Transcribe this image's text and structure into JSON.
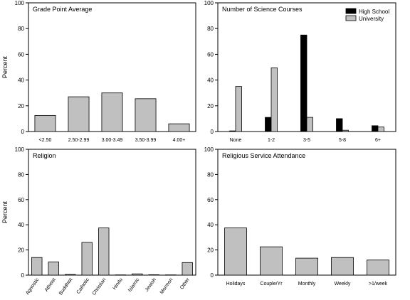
{
  "chart_data": [
    {
      "type": "bar",
      "title": "Grade Point Average",
      "ylabel": "Percent",
      "xlabel": "",
      "ylim": [
        0,
        100
      ],
      "yticks": [
        0,
        20,
        40,
        60,
        80,
        100
      ],
      "categories": [
        "<2.50",
        "2.50-2.99",
        "3.00-3.49",
        "3.50-3.99",
        "4.00+"
      ],
      "series": [
        {
          "values": [
            12.5,
            27,
            30,
            25.5,
            6
          ],
          "color": "#c0c0c0"
        }
      ]
    },
    {
      "type": "bar",
      "title": "Number of Science Courses",
      "ylabel": "",
      "xlabel": "",
      "ylim": [
        0,
        100
      ],
      "yticks": [
        0,
        20,
        40,
        60,
        80,
        100
      ],
      "categories": [
        "None",
        "1-2",
        "3-5",
        "5-8",
        "6+"
      ],
      "legend": "top-right",
      "series": [
        {
          "name": "High School",
          "values": [
            0.5,
            11,
            75,
            10,
            4.5
          ],
          "color": "#000000"
        },
        {
          "name": "University",
          "values": [
            35,
            49.5,
            11,
            1,
            3.5
          ],
          "color": "#c0c0c0"
        }
      ]
    },
    {
      "type": "bar",
      "title": "Religion",
      "ylabel": "Percent",
      "xlabel": "",
      "ylim": [
        0,
        100
      ],
      "yticks": [
        0,
        20,
        40,
        60,
        80,
        100
      ],
      "rotate_tick_labels": true,
      "categories": [
        "Agnostic",
        "Atheist",
        "Buddhist",
        "Catholic",
        "Christian",
        "Hindu",
        "Islamic",
        "Jewish",
        "Mormon",
        "Other"
      ],
      "series": [
        {
          "values": [
            14,
            10.5,
            0.5,
            26,
            37.5,
            0.2,
            1,
            0.3,
            0.2,
            10
          ],
          "color": "#c0c0c0"
        }
      ]
    },
    {
      "type": "bar",
      "title": "Religious Service Attendance",
      "ylabel": "",
      "xlabel": "",
      "ylim": [
        0,
        100
      ],
      "yticks": [
        0,
        20,
        40,
        60,
        80,
        100
      ],
      "categories": [
        "Holidays",
        "Couple/Yr",
        "Monthly",
        "Weekly",
        ">1/week"
      ],
      "series": [
        {
          "values": [
            37.5,
            22.5,
            13.5,
            14,
            12
          ],
          "color": "#c0c0c0"
        }
      ]
    }
  ]
}
